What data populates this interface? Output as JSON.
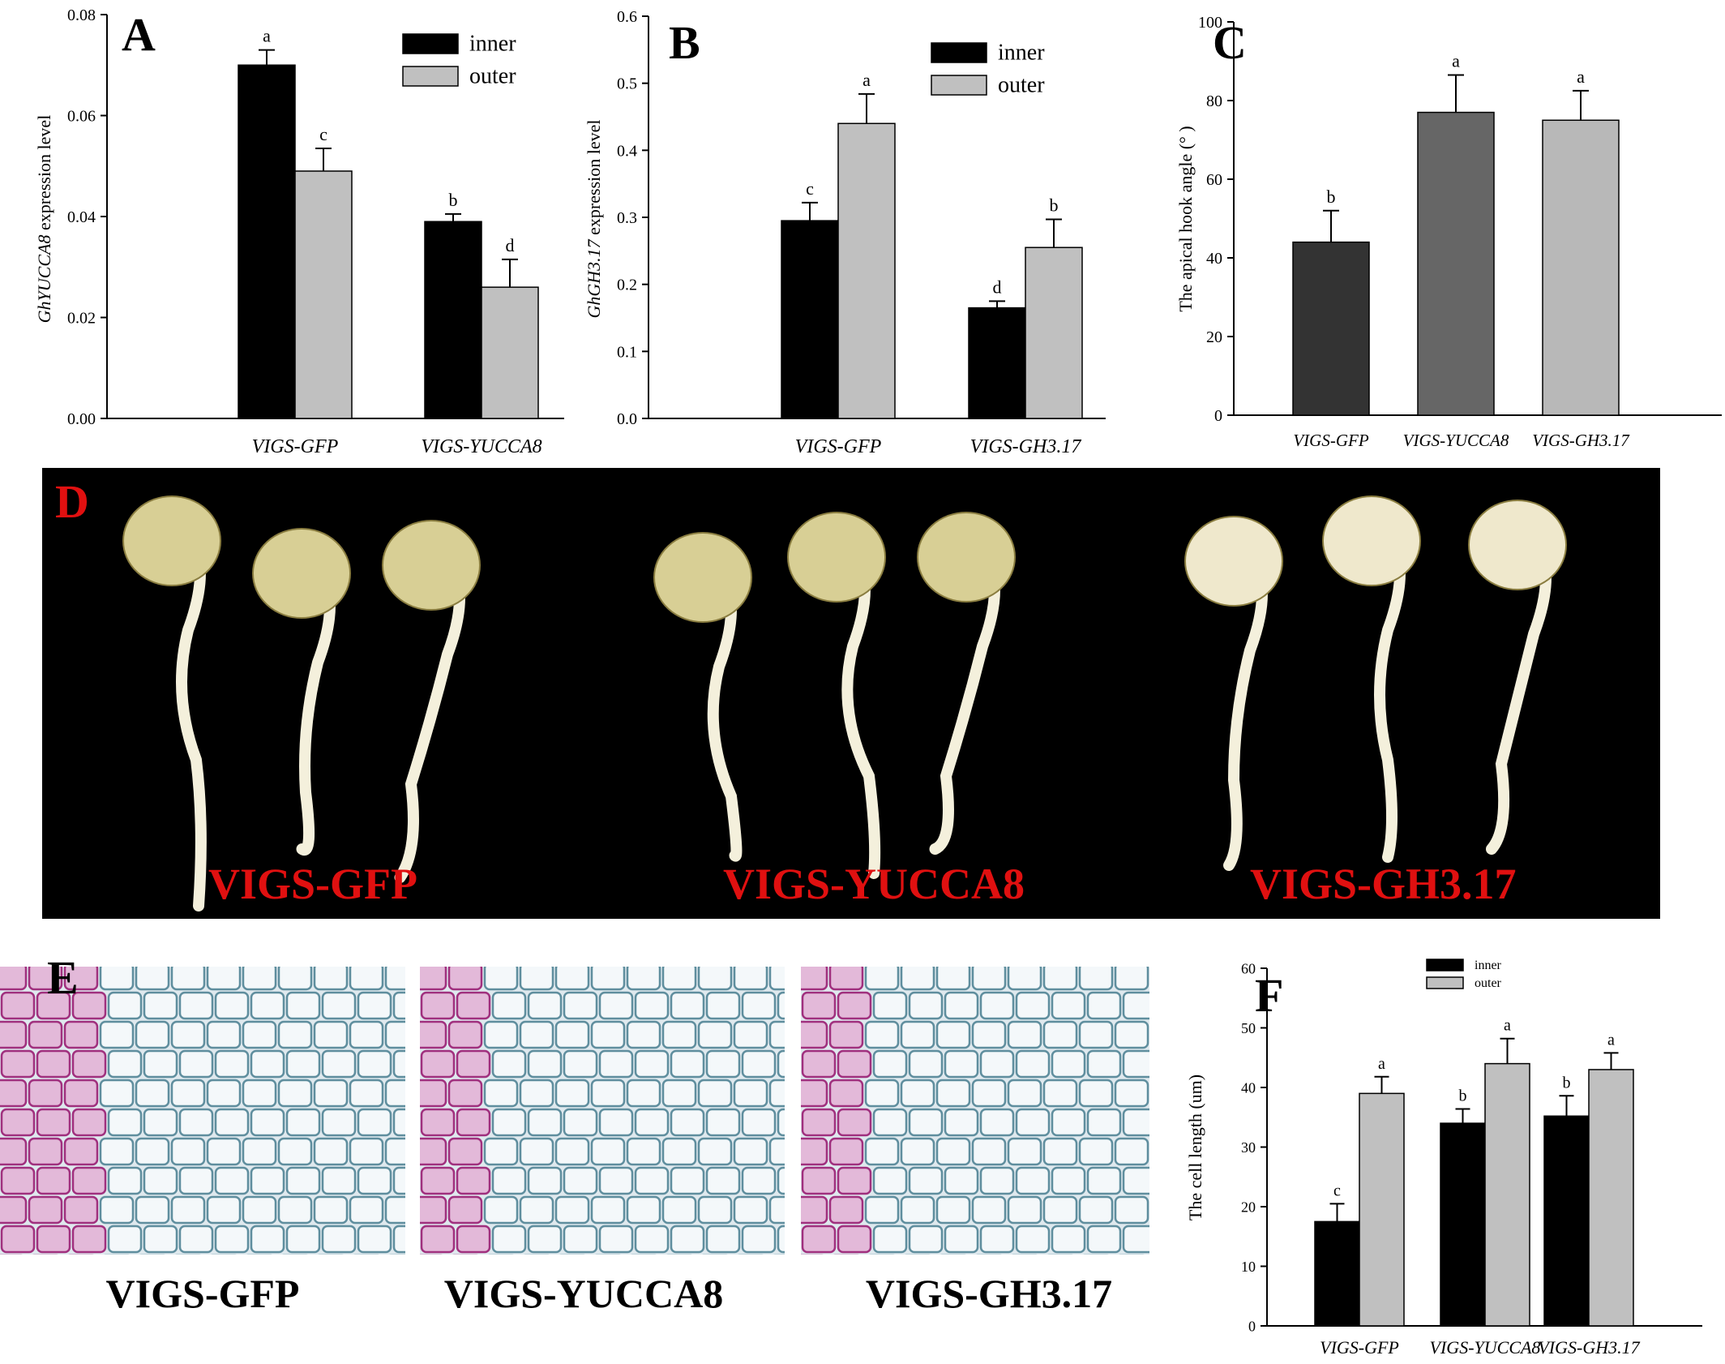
{
  "panels": {
    "A": "A",
    "B": "B",
    "C": "C",
    "D": "D",
    "E": "E",
    "F": "F"
  },
  "chart_data": [
    {
      "id": "A",
      "type": "bar",
      "categories": [
        "VIGS-GFP",
        "VIGS-YUCCA8"
      ],
      "ylabel_italic": "GhYUCCA8",
      "ylabel_rest": " expression level",
      "ylim": [
        0,
        0.08
      ],
      "yticks": [
        "0.00",
        "0.02",
        "0.04",
        "0.06",
        "0.08"
      ],
      "legend_placement": "top-right",
      "series": [
        {
          "name": "inner",
          "color": "#000000",
          "values": [
            0.07,
            0.039
          ],
          "errors": [
            0.003,
            0.0015
          ],
          "letters": [
            "a",
            "b"
          ]
        },
        {
          "name": "outer",
          "color": "#c0c0c0",
          "values": [
            0.049,
            0.026
          ],
          "errors": [
            0.0045,
            0.0055
          ],
          "letters": [
            "c",
            "d"
          ]
        }
      ]
    },
    {
      "id": "B",
      "type": "bar",
      "categories": [
        "VIGS-GFP",
        "VIGS-GH3.17"
      ],
      "ylabel_italic": "GhGH3.17",
      "ylabel_rest": " expression level",
      "ylim": [
        0,
        0.6
      ],
      "yticks": [
        "0.0",
        "0.1",
        "0.2",
        "0.3",
        "0.4",
        "0.5",
        "0.6"
      ],
      "legend_placement": "top-right",
      "series": [
        {
          "name": "inner",
          "color": "#000000",
          "values": [
            0.295,
            0.165
          ],
          "errors": [
            0.027,
            0.01
          ],
          "letters": [
            "c",
            "d"
          ]
        },
        {
          "name": "outer",
          "color": "#c0c0c0",
          "values": [
            0.44,
            0.255
          ],
          "errors": [
            0.044,
            0.042
          ],
          "letters": [
            "a",
            "b"
          ]
        }
      ]
    },
    {
      "id": "C",
      "type": "bar",
      "categories": [
        "VIGS-GFP",
        "VIGS-YUCCA8",
        "VIGS-GH3.17"
      ],
      "ylabel": "The apical hook angle (° )",
      "ylim": [
        0,
        100
      ],
      "yticks": [
        "0",
        "20",
        "40",
        "60",
        "80",
        "100"
      ],
      "values": [
        44,
        77,
        75
      ],
      "errors": [
        8,
        9.5,
        7.5
      ],
      "letters": [
        "b",
        "a",
        "a"
      ],
      "colors": [
        "#333333",
        "#666666",
        "#b8b8b8"
      ]
    },
    {
      "id": "F",
      "type": "bar",
      "categories": [
        "VIGS-GFP",
        "VIGS-YUCCA8",
        "VIGS-GH3.17"
      ],
      "ylabel": "The cell length (um)",
      "ylim": [
        0,
        60
      ],
      "yticks": [
        "0",
        "10",
        "20",
        "30",
        "40",
        "50",
        "60"
      ],
      "legend_placement": "top-right",
      "series": [
        {
          "name": "inner",
          "color": "#000000",
          "values": [
            17.5,
            34,
            35.2
          ],
          "errors": [
            3,
            2.4,
            3.4
          ],
          "letters": [
            "c",
            "b",
            "b"
          ]
        },
        {
          "name": "outer",
          "color": "#c0c0c0",
          "values": [
            39,
            44,
            43
          ],
          "errors": [
            2.8,
            4.2,
            2.8
          ],
          "letters": [
            "a",
            "a",
            "a"
          ]
        }
      ]
    }
  ],
  "photo_d": {
    "labels": [
      "VIGS-GFP",
      "VIGS-YUCCA8",
      "VIGS-GH3.17"
    ],
    "label_color": "#e01010"
  },
  "micro_e": {
    "labels": [
      "VIGS-GFP",
      "VIGS-YUCCA8",
      "VIGS-GH3.17"
    ]
  }
}
